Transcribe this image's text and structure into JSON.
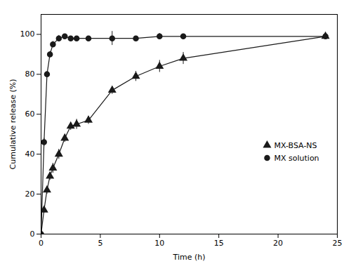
{
  "chart_data": {
    "type": "line",
    "xlabel": "Time (h)",
    "ylabel": "Cumulative release (%)",
    "x": [
      0,
      0.25,
      0.5,
      0.75,
      1,
      1.5,
      2,
      2.5,
      3,
      4,
      6,
      8,
      10,
      12,
      24
    ],
    "series": [
      {
        "name": "MX-BSA-NS",
        "color": "#1a1a1a",
        "marker": "triangle",
        "line_style": "solid",
        "values": [
          0,
          12,
          22,
          29,
          33,
          40,
          48,
          54,
          55,
          57,
          72,
          79,
          84,
          88,
          99
        ],
        "yerr": [
          0,
          1.5,
          2.0,
          2.0,
          2.5,
          2.5,
          2.0,
          2.0,
          2.5,
          2.0,
          2.0,
          2.5,
          3.0,
          3.0,
          1.5
        ]
      },
      {
        "name": "MX solution",
        "color": "#1a1a1a",
        "marker": "circle",
        "line_style": "solid",
        "values": [
          0,
          46,
          80,
          90,
          95,
          98,
          99,
          98,
          98,
          98,
          98,
          98,
          99,
          99,
          99
        ],
        "yerr": [
          0,
          2.0,
          1.5,
          1.5,
          1.5,
          1.5,
          1.0,
          1.0,
          1.0,
          1.0,
          3.5,
          1.0,
          1.5,
          1.0,
          1.5
        ]
      }
    ],
    "xlim": [
      0,
      25
    ],
    "ylim": [
      0,
      110
    ],
    "xticks": [
      0,
      5,
      10,
      15,
      20,
      25
    ],
    "yticks": [
      0,
      20,
      40,
      60,
      80,
      100
    ],
    "grid": false,
    "legend": "right"
  }
}
